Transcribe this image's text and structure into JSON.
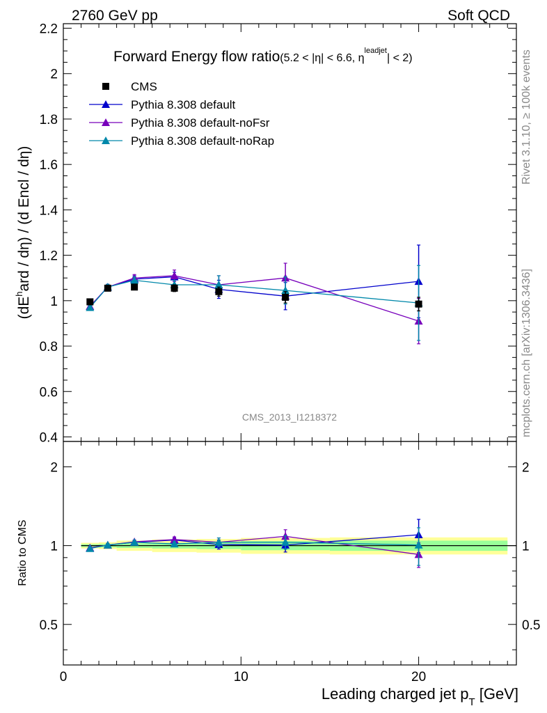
{
  "header": {
    "left": "2760 GeV pp",
    "right": "Soft QCD"
  },
  "side_labels": {
    "rivet": "Rivet 3.1.10, ≥ 100k events",
    "mcplots": "mcplots.cern.ch [arXiv:1306.3436]"
  },
  "watermark": "CMS_2013_I1218372",
  "colors": {
    "cms": "#000000",
    "default": "#0000cc",
    "noFsr": "#7700bb",
    "noRap": "#0088aa",
    "band_yellow": "#ffff99",
    "band_green": "#99ff99"
  },
  "chart_data": [
    {
      "type": "line",
      "title_main": "Forward Energy flow ratio",
      "title_cond_a": "(5.2 < |η| < 6.6, η",
      "title_cond_sup": "leadjet",
      "title_cond_b": "| < 2)",
      "ylabel_a": "(dE",
      "ylabel_sup": "h",
      "ylabel_b": "ard / dη) / (d Encl / dη)",
      "xlim": [
        0,
        25.5
      ],
      "ylim": [
        0.38,
        2.22
      ],
      "yticks": [
        "0.4",
        "0.6",
        "0.8",
        "1",
        "1.2",
        "1.4",
        "1.6",
        "1.8",
        "2",
        "2.2"
      ],
      "x": [
        1.5,
        2.5,
        4,
        6.25,
        8.75,
        12.5,
        20
      ],
      "series": [
        {
          "name": "CMS",
          "marker": "square",
          "values": [
            0.995,
            1.055,
            1.06,
            1.055,
            1.04,
            1.015,
            0.985
          ],
          "errors": [
            0.01,
            0.012,
            0.012,
            0.015,
            0.02,
            0.025,
            0.03
          ]
        },
        {
          "name": "Pythia 8.308 default",
          "marker": "triangle",
          "values": [
            0.975,
            1.06,
            1.095,
            1.105,
            1.05,
            1.02,
            1.085
          ],
          "errors": [
            0.01,
            0.012,
            0.015,
            0.02,
            0.04,
            0.06,
            0.16
          ]
        },
        {
          "name": "Pythia 8.308 default-noFsr",
          "marker": "triangle",
          "values": [
            0.975,
            1.06,
            1.1,
            1.11,
            1.07,
            1.1,
            0.91
          ],
          "errors": [
            0.01,
            0.012,
            0.015,
            0.025,
            0.04,
            0.065,
            0.1
          ]
        },
        {
          "name": "Pythia 8.308 default-noRap",
          "marker": "triangle",
          "values": [
            0.97,
            1.06,
            1.09,
            1.07,
            1.07,
            1.045,
            0.99
          ],
          "errors": [
            0.01,
            0.012,
            0.015,
            0.02,
            0.04,
            0.06,
            0.165
          ]
        }
      ]
    },
    {
      "type": "line",
      "ylabel": "Ratio to CMS",
      "xlabel_a": "Leading charged jet p",
      "xlabel_sub": "T",
      "xlabel_b": " [GeV]",
      "xlim": [
        0,
        25.5
      ],
      "ylim": [
        0.35,
        2.5
      ],
      "yscale": "log",
      "yticks": [
        "0.5",
        "1",
        "2"
      ],
      "xticks": [
        "0",
        "10",
        "20"
      ],
      "x": [
        1.5,
        2.5,
        4,
        6.25,
        8.75,
        12.5,
        20
      ],
      "bands": {
        "edges": [
          1,
          2,
          3,
          5,
          7.5,
          10,
          15,
          25
        ],
        "yellow_half": [
          0.025,
          0.03,
          0.045,
          0.055,
          0.06,
          0.07,
          0.075
        ],
        "green_half": [
          0.012,
          0.015,
          0.02,
          0.025,
          0.03,
          0.04,
          0.045
        ]
      },
      "series": [
        {
          "name": "Pythia 8.308 default",
          "values": [
            0.98,
            1.005,
            1.03,
            1.05,
            1.01,
            1.005,
            1.1
          ],
          "errors": [
            0.01,
            0.012,
            0.015,
            0.02,
            0.04,
            0.06,
            0.16
          ]
        },
        {
          "name": "Pythia 8.308 default-noFsr",
          "values": [
            0.98,
            1.005,
            1.035,
            1.055,
            1.03,
            1.085,
            0.925
          ],
          "errors": [
            0.01,
            0.012,
            0.015,
            0.025,
            0.04,
            0.065,
            0.1
          ]
        },
        {
          "name": "Pythia 8.308 default-noRap",
          "values": [
            0.975,
            1.005,
            1.03,
            1.015,
            1.03,
            1.03,
            1.005
          ],
          "errors": [
            0.01,
            0.012,
            0.015,
            0.02,
            0.04,
            0.06,
            0.165
          ]
        }
      ]
    }
  ]
}
